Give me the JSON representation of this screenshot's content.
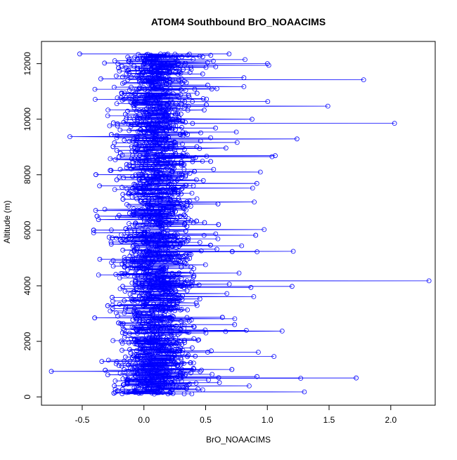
{
  "chart_data": {
    "type": "scatter",
    "title": "ATOM4 Southbound BrO_NOAACIMS",
    "xlabel": "BrO_NOAACIMS",
    "ylabel": "Altitude (m)",
    "xlim": [
      -0.83,
      2.36
    ],
    "ylim": [
      -300,
      12800
    ],
    "x_ticks": [
      -0.5,
      0.0,
      0.5,
      1.0,
      1.5,
      2.0
    ],
    "x_tick_labels": [
      "-0.5",
      "0.0",
      "0.5",
      "1.0",
      "1.5",
      "2.0"
    ],
    "y_ticks": [
      0,
      2000,
      4000,
      6000,
      8000,
      10000,
      12000
    ],
    "y_tick_labels": [
      "0",
      "2000",
      "4000",
      "6000",
      "8000",
      "10000",
      "12000"
    ],
    "grid": false,
    "legend": "none",
    "marker": "open-circle",
    "connected": true,
    "series_color": "#0000ff",
    "series": [
      {
        "altitude_range": [
          100,
          12350
        ],
        "core_x_range": [
          -0.4,
          0.6
        ],
        "notable_points": [
          {
            "x": 2.31,
            "y": 4180
          },
          {
            "x": 2.03,
            "y": 9850
          },
          {
            "x": 1.78,
            "y": 11420
          },
          {
            "x": 1.72,
            "y": 680
          },
          {
            "x": 1.49,
            "y": 10470
          },
          {
            "x": 1.3,
            "y": 180
          },
          {
            "x": 1.27,
            "y": 670
          },
          {
            "x": 1.21,
            "y": 5240
          },
          {
            "x": 1.2,
            "y": 3980
          },
          {
            "x": 1.12,
            "y": 2370
          },
          {
            "x": 1.24,
            "y": 9290
          },
          {
            "x": 1.0,
            "y": 12000
          },
          {
            "x": 0.69,
            "y": 12350
          },
          {
            "x": -0.75,
            "y": 920
          },
          {
            "x": -0.6,
            "y": 9370
          },
          {
            "x": -0.52,
            "y": 12350
          }
        ]
      }
    ]
  }
}
